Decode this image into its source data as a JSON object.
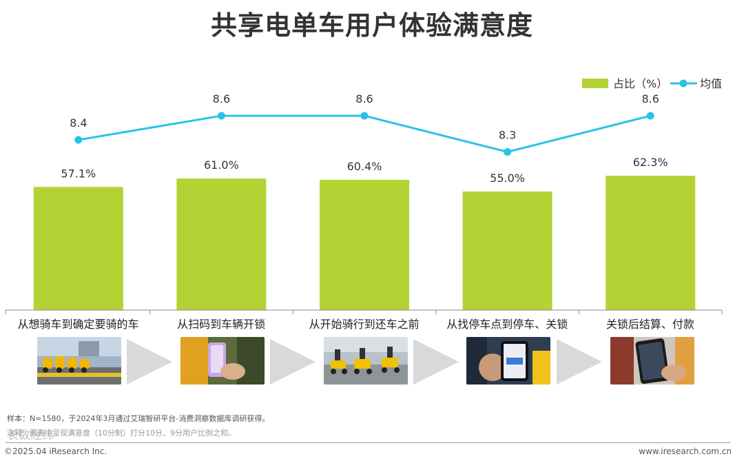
{
  "title": "共享电单车用户体验满意度",
  "legend": {
    "bar_label": "占比（%）",
    "line_label": "均值",
    "bar_color": "#b3d335",
    "line_color": "#29c3e8"
  },
  "chart_data": {
    "type": "bar",
    "categories": [
      "从想骑车到确定要骑的车",
      "从扫码到车辆开锁",
      "从开始骑行到还车之前",
      "从找停车点到停车、关锁",
      "关锁后结算、付款"
    ],
    "series": [
      {
        "name": "占比（%）",
        "type": "bar",
        "values": [
          57.1,
          61.0,
          60.4,
          55.0,
          62.3
        ],
        "labels": [
          "57.1%",
          "61.0%",
          "60.4%",
          "55.0%",
          "62.3%"
        ]
      },
      {
        "name": "均值",
        "type": "line",
        "values": [
          8.4,
          8.6,
          8.6,
          8.3,
          8.6
        ],
        "labels": [
          "8.4",
          "8.6",
          "8.6",
          "8.3",
          "8.6"
        ]
      }
    ],
    "legend_position": "top-right",
    "grid": false
  },
  "photos": [
    {
      "name": "photo-parked-bikes",
      "icon": "parked-bikes-photo"
    },
    {
      "name": "photo-scan-code",
      "icon": "scan-phone-photo"
    },
    {
      "name": "photo-riding",
      "icon": "riding-photo"
    },
    {
      "name": "photo-parking-app",
      "icon": "parking-app-photo"
    },
    {
      "name": "photo-payment",
      "icon": "payment-phone-photo"
    }
  ],
  "notes": {
    "sample": "样本：N=1580，于2024年3月通过艾瑞智研平台-消费洞察数据库调研获得。",
    "remark": "注释：图表中呈现满意度（10分制）打分10分、9分用户比例之和。"
  },
  "footer": {
    "copyright": "©2025.04 iResearch Inc.",
    "website": "www.iresearch.com.cn",
    "watermark": "长数经纬"
  }
}
